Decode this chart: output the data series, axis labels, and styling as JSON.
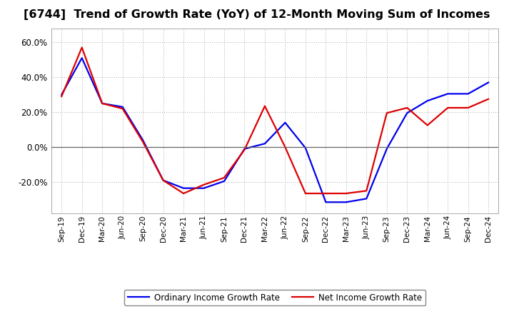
{
  "title": "[6744]  Trend of Growth Rate (YoY) of 12-Month Moving Sum of Incomes",
  "title_fontsize": 11.5,
  "ylim": [
    -0.38,
    0.68
  ],
  "yticks": [
    -0.2,
    0.0,
    0.2,
    0.4,
    0.6
  ],
  "background_color": "#ffffff",
  "grid_color": "#aaaaaa",
  "zero_line_color": "#666666",
  "x_labels": [
    "Sep-19",
    "Dec-19",
    "Mar-20",
    "Jun-20",
    "Sep-20",
    "Dec-20",
    "Mar-21",
    "Jun-21",
    "Sep-21",
    "Dec-21",
    "Mar-22",
    "Jun-22",
    "Sep-22",
    "Dec-22",
    "Mar-23",
    "Jun-23",
    "Sep-23",
    "Dec-23",
    "Mar-24",
    "Jun-24",
    "Sep-24",
    "Dec-24"
  ],
  "ordinary_income": [
    0.3,
    0.51,
    0.25,
    0.23,
    0.04,
    -0.19,
    -0.235,
    -0.235,
    -0.195,
    -0.01,
    0.02,
    0.14,
    -0.005,
    -0.315,
    -0.315,
    -0.295,
    -0.01,
    0.195,
    0.265,
    0.305,
    0.305,
    0.37
  ],
  "net_income": [
    0.29,
    0.57,
    0.25,
    0.22,
    0.03,
    -0.19,
    -0.265,
    -0.215,
    -0.175,
    -0.015,
    0.235,
    0.0,
    -0.265,
    -0.265,
    -0.265,
    -0.25,
    0.195,
    0.225,
    0.125,
    0.225,
    0.225,
    0.275
  ],
  "ordinary_color": "#0000ee",
  "net_color": "#dd0000",
  "line_width": 1.6,
  "legend_ordinary": "Ordinary Income Growth Rate",
  "legend_net": "Net Income Growth Rate"
}
